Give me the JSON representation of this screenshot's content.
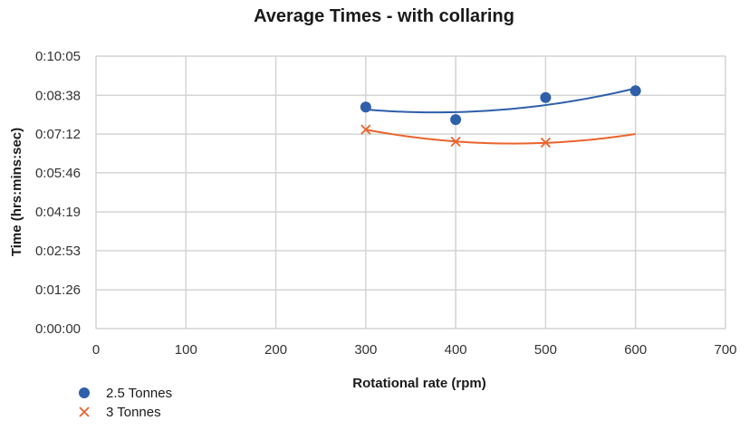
{
  "chart_data": {
    "type": "scatter",
    "title": "Average Times - with collaring",
    "xlabel": "Rotational rate (rpm)",
    "ylabel": "Time (hrs:mins:sec)",
    "xlim": [
      0,
      700
    ],
    "x_ticks": [
      "0",
      "100",
      "200",
      "300",
      "400",
      "500",
      "600",
      "700"
    ],
    "ylim": [
      "0:00:00",
      "0:10:05"
    ],
    "y_ticks": [
      "0:00:00",
      "0:01:26",
      "0:02:53",
      "0:04:19",
      "0:05:46",
      "0:07:12",
      "0:08:38",
      "0:10:05"
    ],
    "grid": true,
    "legend_position": "bottom-left",
    "series": [
      {
        "name": "2.5 Tonnes",
        "marker": "circle",
        "color": "#2E5FAA",
        "points": [
          {
            "x": 300,
            "y": "0:08:12"
          },
          {
            "x": 400,
            "y": "0:07:44"
          },
          {
            "x": 500,
            "y": "0:08:33"
          },
          {
            "x": 600,
            "y": "0:08:48"
          }
        ],
        "trendline": "polynomial"
      },
      {
        "name": "3 Tonnes",
        "marker": "x",
        "color": "#E8642C",
        "points": [
          {
            "x": 300,
            "y": "0:07:22"
          },
          {
            "x": 400,
            "y": "0:06:55"
          },
          {
            "x": 500,
            "y": "0:06:53"
          },
          {
            "x": 600,
            "y": null
          }
        ],
        "trendline": "polynomial",
        "trendline_end": "0:07:12"
      }
    ]
  }
}
